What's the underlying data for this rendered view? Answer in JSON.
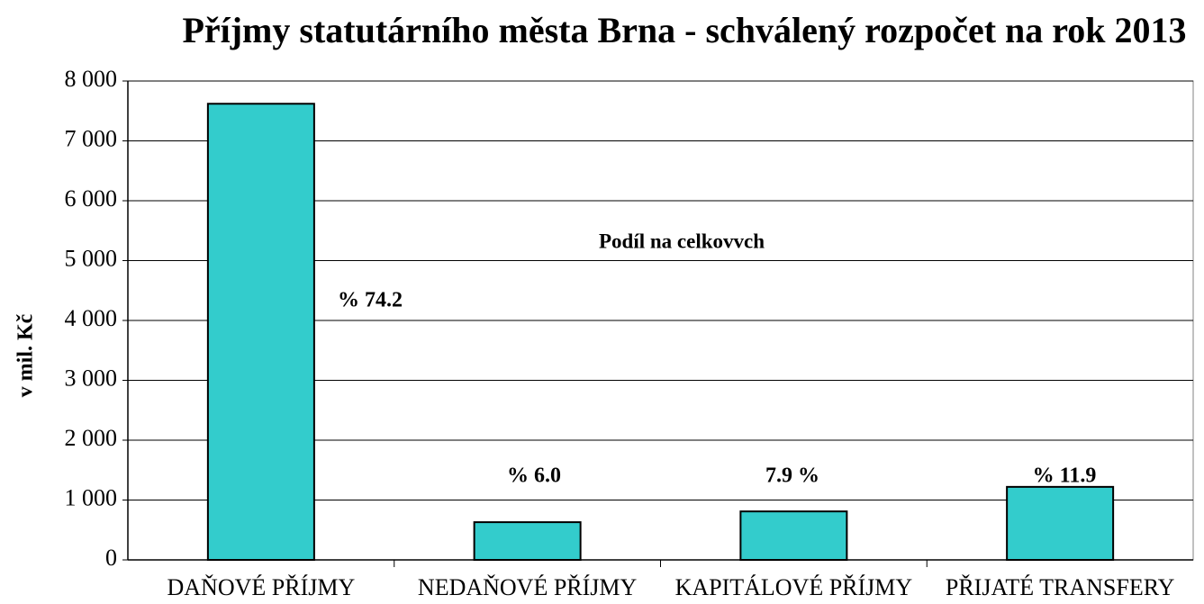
{
  "chart_data": {
    "type": "bar",
    "title": "Příjmy statutárního města Brna - schválený rozpočet na rok 2013",
    "y_label": "v mil. Kč",
    "annotation": "Podíl na celkovvch",
    "categories": [
      "DAŇOVÉ PŘÍJMY",
      "NEDAŇOVÉ PŘÍJMY",
      "KAPITÁLOVÉ PŘÍJMY",
      "PŘIJATÉ TRANSFERY"
    ],
    "values": [
      7620,
      630,
      810,
      1220
    ],
    "share_labels": [
      "% 74.2",
      "% 6.0",
      "7.9 %",
      "% 11.9"
    ],
    "color": "#33cccc",
    "ylim": [
      0,
      8000
    ],
    "yticks": [
      0,
      {
        "value": 1000,
        "label": "1 000"
      },
      {
        "value": 2000,
        "label": "2 000"
      },
      {
        "value": 3000,
        "label": "3 000"
      },
      {
        "value": 4000,
        "label": "4 000"
      },
      {
        "value": 5000,
        "label": "5 000"
      },
      {
        "value": 6000,
        "label": "6 000"
      },
      {
        "value": 7000,
        "label": "7 000"
      },
      {
        "value": 8000,
        "label": "8 000"
      }
    ],
    "grid": true
  }
}
